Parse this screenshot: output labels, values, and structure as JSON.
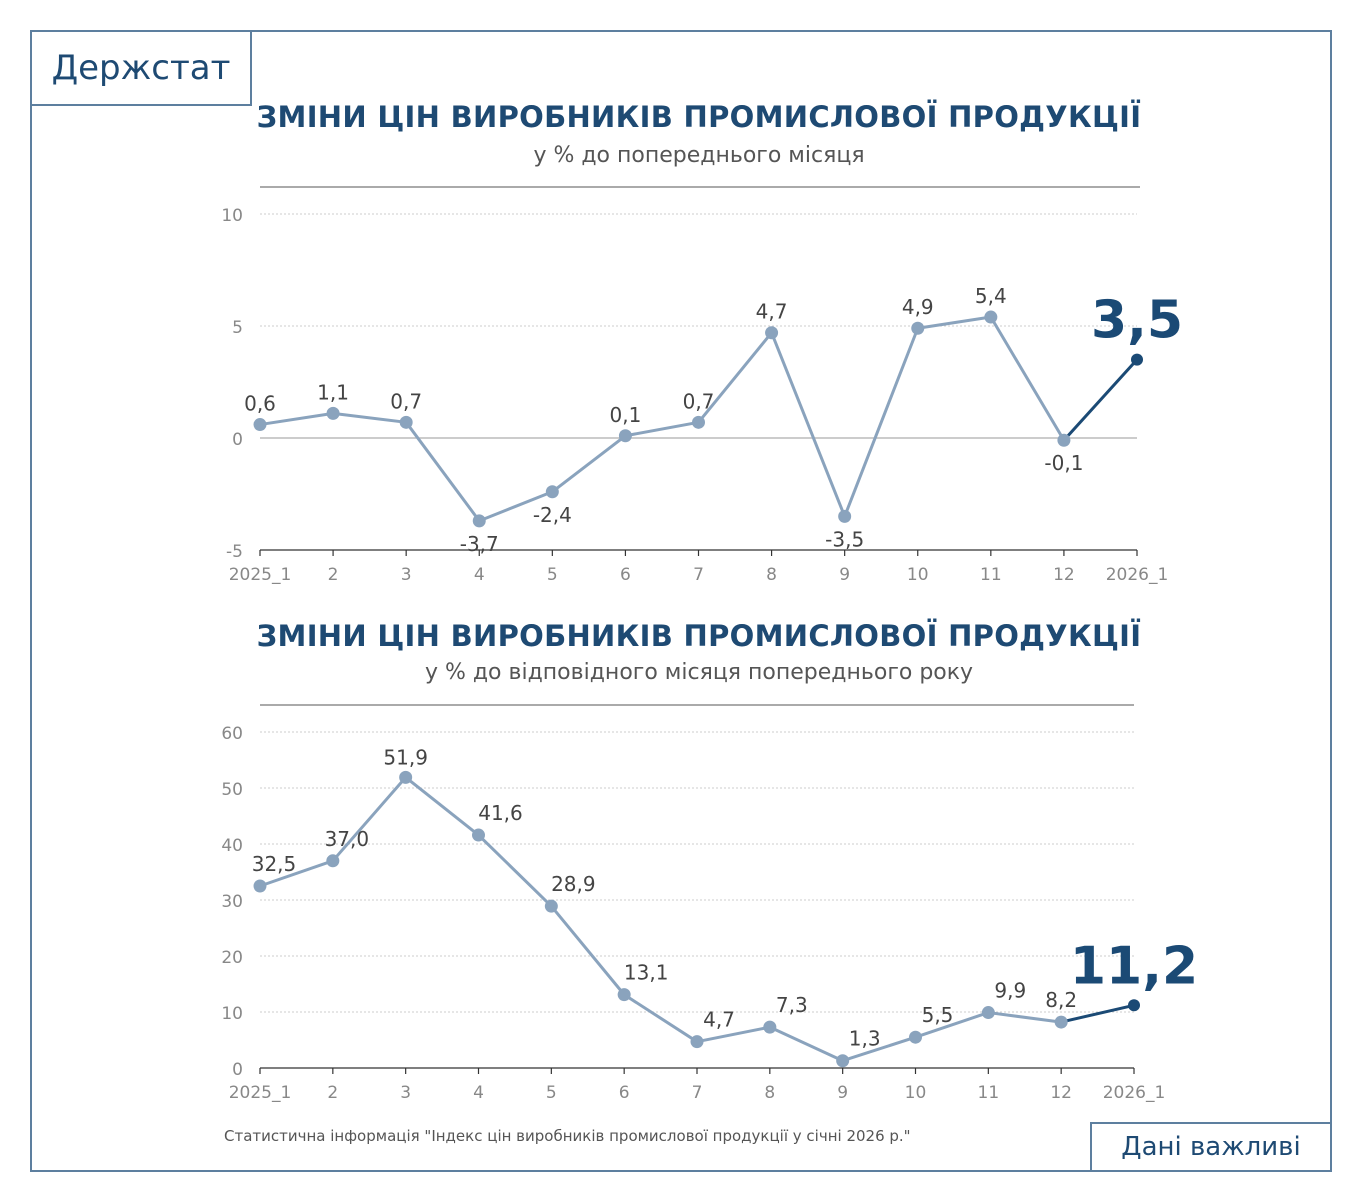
{
  "logo": "Держстат",
  "badge": "Дані важливі",
  "source": "Статистична інформація \"Індекс цін виробників промислової продукції у січні 2026 р.\"",
  "colors": {
    "frame": "#5d7f9f",
    "title": "#1e4a73",
    "series": "#8aa3bd",
    "highlight": "#1b4a75"
  },
  "chart_data": [
    {
      "type": "line",
      "title": "ЗМІНИ ЦІН ВИРОБНИКІВ ПРОМИСЛОВОЇ ПРОДУКЦІЇ",
      "subtitle": "у % до попереднього місяця",
      "categories": [
        "2025_1",
        "2",
        "3",
        "4",
        "5",
        "6",
        "7",
        "8",
        "9",
        "10",
        "11",
        "12",
        "2026_1"
      ],
      "values": [
        0.6,
        1.1,
        0.7,
        -3.7,
        -2.4,
        0.1,
        0.7,
        4.7,
        -3.5,
        4.9,
        5.4,
        -0.1,
        3.5
      ],
      "labels": [
        "0,6",
        "1,1",
        "0,7",
        "-3,7",
        "-2,4",
        "0,1",
        "0,7",
        "4,7",
        "-3,5",
        "4,9",
        "5,4",
        "-0,1",
        "3,5"
      ],
      "yticks": [
        10,
        5,
        0,
        -5
      ],
      "ytick_labels": [
        "10",
        "5",
        "0",
        "-5"
      ],
      "ylim": [
        -5,
        10
      ],
      "grid": true,
      "highlight_last": true
    },
    {
      "type": "line",
      "title": "ЗМІНИ ЦІН ВИРОБНИКІВ ПРОМИСЛОВОЇ ПРОДУКЦІЇ",
      "subtitle": "у % до відповідного місяця попереднього року",
      "categories": [
        "2025_1",
        "2",
        "3",
        "4",
        "5",
        "6",
        "7",
        "8",
        "9",
        "10",
        "11",
        "12",
        "2026_1"
      ],
      "values": [
        32.5,
        37.0,
        51.9,
        41.6,
        28.9,
        13.1,
        4.7,
        7.3,
        1.3,
        5.5,
        9.9,
        8.2,
        11.2
      ],
      "labels": [
        "32,5",
        "37,0",
        "51,9",
        "41,6",
        "28,9",
        "13,1",
        "4,7",
        "7,3",
        "1,3",
        "5,5",
        "9,9",
        "8,2",
        "11,2"
      ],
      "yticks": [
        60,
        50,
        40,
        30,
        20,
        10,
        0
      ],
      "ytick_labels": [
        "60",
        "50",
        "40",
        "30",
        "20",
        "10",
        "0"
      ],
      "ylim": [
        0,
        60
      ],
      "grid": true,
      "highlight_last": true
    }
  ]
}
